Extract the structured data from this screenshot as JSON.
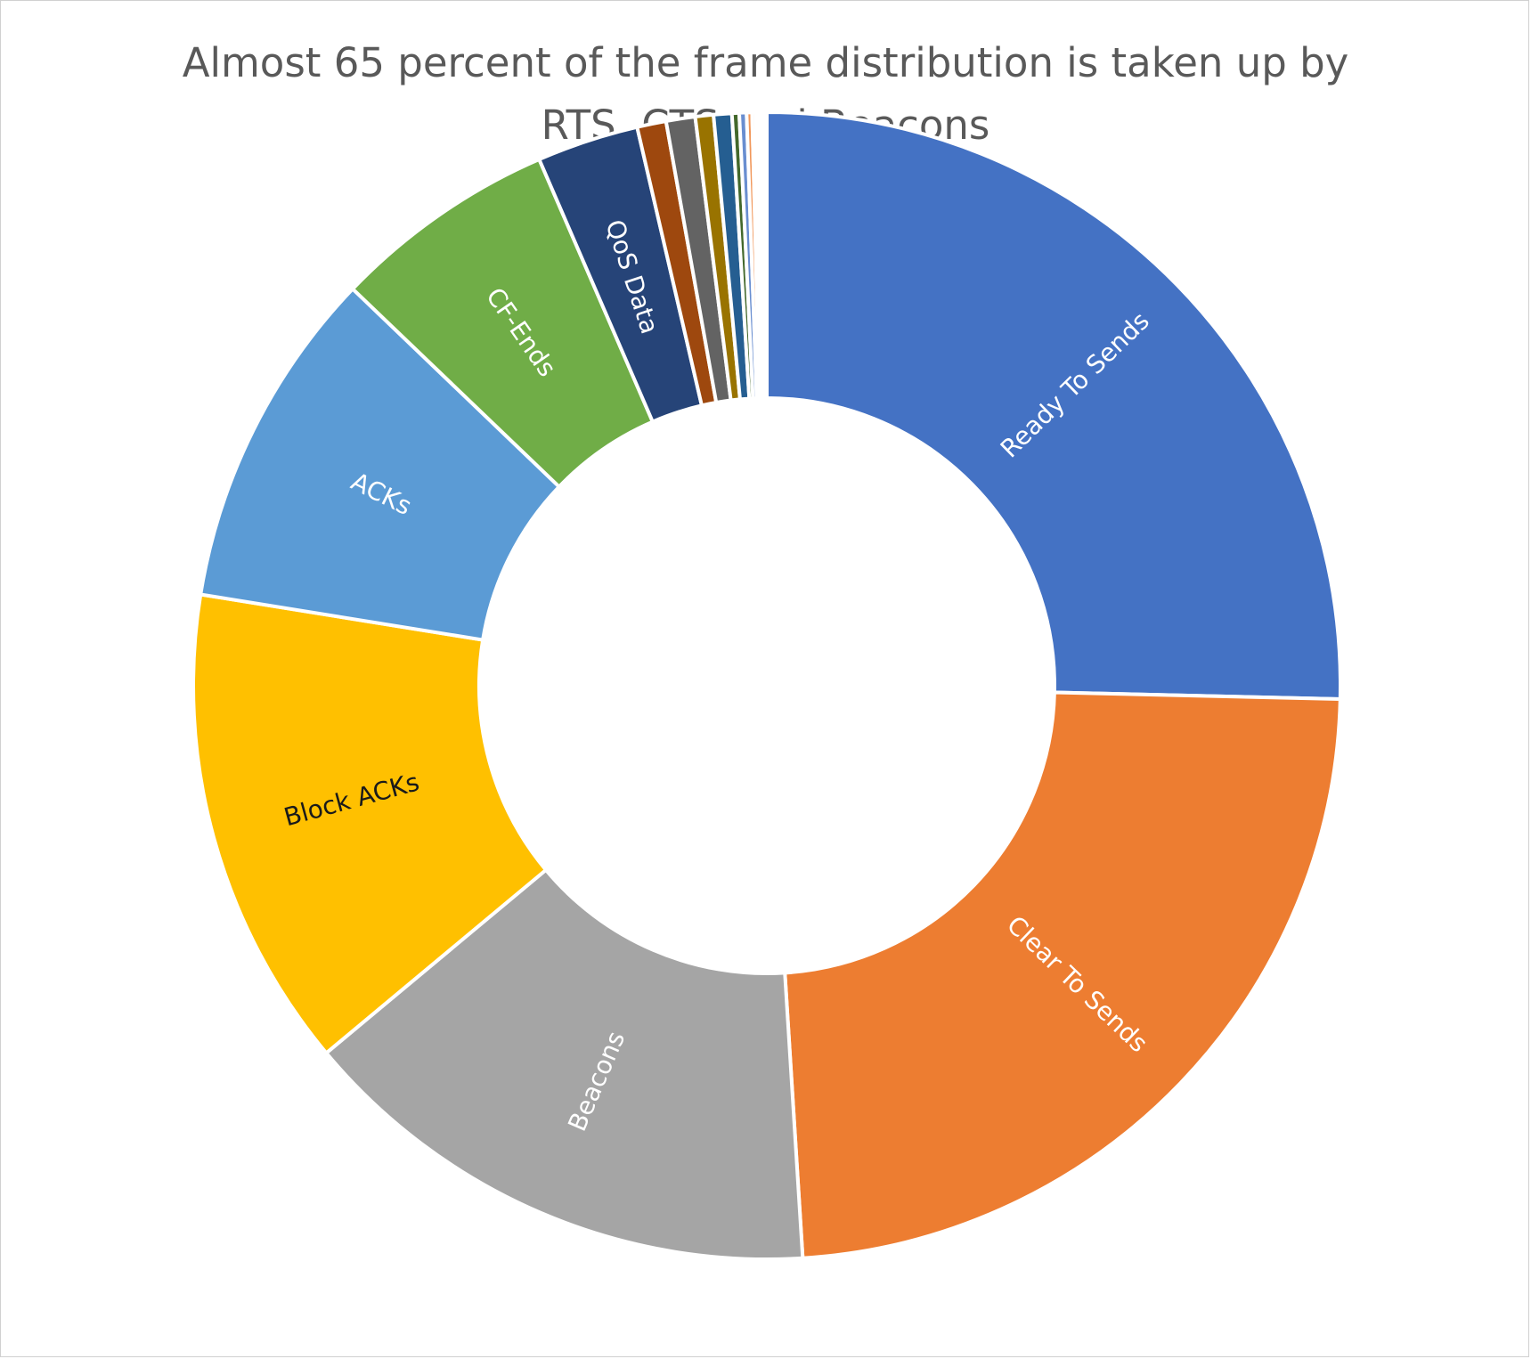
{
  "chart_data": {
    "type": "pie",
    "variant": "doughnut",
    "title_lines": [
      "Almost 65 percent of the frame distribution is taken up by",
      "RTS, CTS and Beacons"
    ],
    "series": [
      {
        "values": [
          24.8,
          23.1,
          14.6,
          13.3,
          9.4,
          6.2,
          2.8,
          0.8,
          0.8,
          0.5,
          0.5,
          0.2,
          0.2,
          0.15,
          0.1,
          0.08,
          0.07,
          0.06,
          0.05,
          0.04
        ]
      }
    ],
    "slice_labels": [
      "Ready To Sends",
      "Clear To Sends",
      "Beacons",
      "Block ACKs",
      "ACKs",
      "CF-Ends",
      "QoS Data",
      "",
      "",
      "",
      "",
      "",
      "",
      "",
      "",
      "",
      "",
      "",
      "",
      ""
    ],
    "colors": [
      "#4472C4",
      "#ED7D31",
      "#A5A5A5",
      "#FFC000",
      "#5B9BD5",
      "#70AD47",
      "#264478",
      "#9E480E",
      "#636363",
      "#997300",
      "#255E91",
      "#43682B",
      "#698ED0",
      "#F1975A",
      "#B7B7B7",
      "#FFCD33",
      "#7CAFDD",
      "#8CC168",
      "#335AA1",
      "#C55A11"
    ],
    "label_colors": [
      "#ffffff",
      "#ffffff",
      "#ffffff",
      "#1a1a1a",
      "#ffffff",
      "#ffffff",
      "#ffffff",
      "",
      "",
      "",
      "",
      "",
      "",
      "",
      "",
      "",
      "",
      "",
      "",
      ""
    ],
    "legend": "none",
    "start_angle_deg": 0,
    "direction": "clockwise"
  }
}
